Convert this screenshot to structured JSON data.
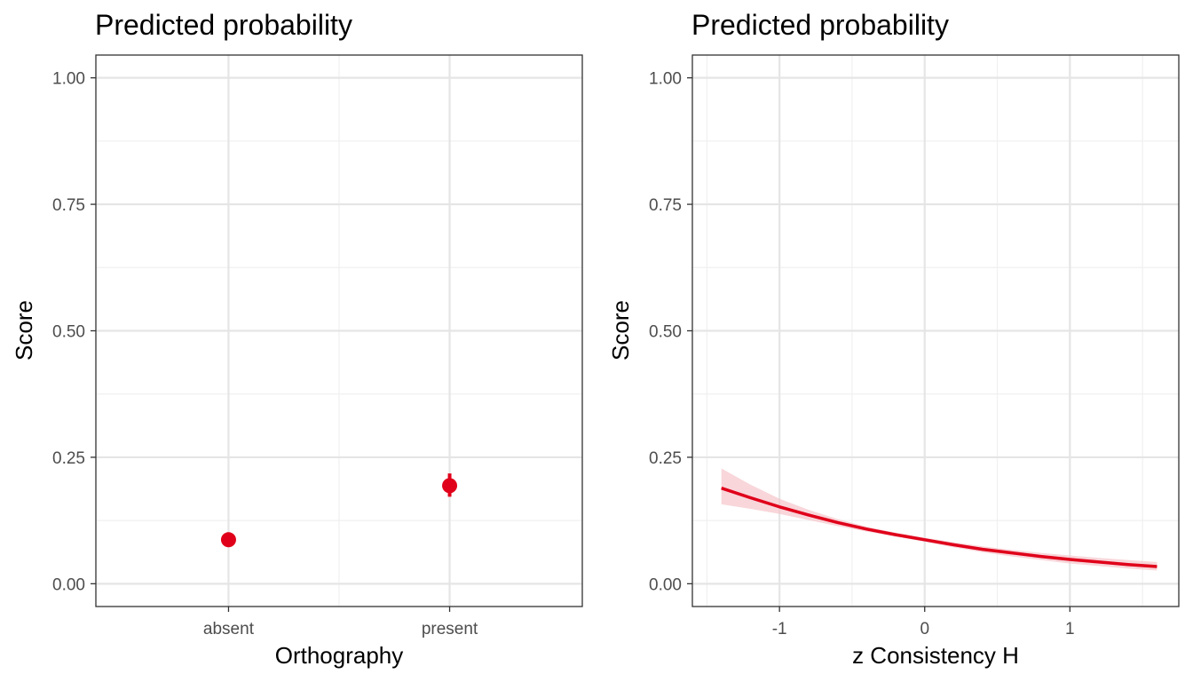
{
  "chart_data": [
    {
      "type": "scatter",
      "title": "Predicted probability",
      "xlabel": "Orthography",
      "ylabel": "Score",
      "categories": [
        "absent",
        "present"
      ],
      "ylim": [
        -0.045,
        1.045
      ],
      "yticks": [
        "0.00",
        "0.25",
        "0.50",
        "0.75",
        "1.00"
      ],
      "grid": true,
      "color": "#e0001a",
      "points": [
        {
          "category": "absent",
          "value": 0.087,
          "lower": 0.08,
          "upper": 0.094
        },
        {
          "category": "present",
          "value": 0.194,
          "lower": 0.172,
          "upper": 0.218
        }
      ]
    },
    {
      "type": "line",
      "title": "Predicted probability",
      "xlabel": "z Consistency H",
      "ylabel": "Score",
      "xlim": [
        -1.6,
        1.75
      ],
      "ylim": [
        -0.045,
        1.045
      ],
      "xticks": [
        "-1",
        "0",
        "1"
      ],
      "yticks": [
        "0.00",
        "0.25",
        "0.50",
        "0.75",
        "1.00"
      ],
      "grid": true,
      "color": "#e0001a",
      "ribbon_color": "#f5c4cb",
      "series": [
        {
          "x": [
            -1.4,
            -1.2,
            -1.0,
            -0.8,
            -0.6,
            -0.4,
            -0.2,
            0.0,
            0.2,
            0.4,
            0.6,
            0.8,
            1.0,
            1.2,
            1.4,
            1.6
          ],
          "y": [
            0.189,
            0.17,
            0.152,
            0.136,
            0.121,
            0.108,
            0.097,
            0.087,
            0.077,
            0.068,
            0.061,
            0.054,
            0.048,
            0.043,
            0.038,
            0.034
          ],
          "lower": [
            0.157,
            0.148,
            0.138,
            0.126,
            0.114,
            0.103,
            0.093,
            0.083,
            0.072,
            0.062,
            0.054,
            0.047,
            0.04,
            0.035,
            0.03,
            0.026
          ],
          "upper": [
            0.228,
            0.196,
            0.168,
            0.146,
            0.128,
            0.113,
            0.101,
            0.091,
            0.082,
            0.074,
            0.067,
            0.061,
            0.056,
            0.051,
            0.047,
            0.043
          ]
        }
      ]
    }
  ]
}
